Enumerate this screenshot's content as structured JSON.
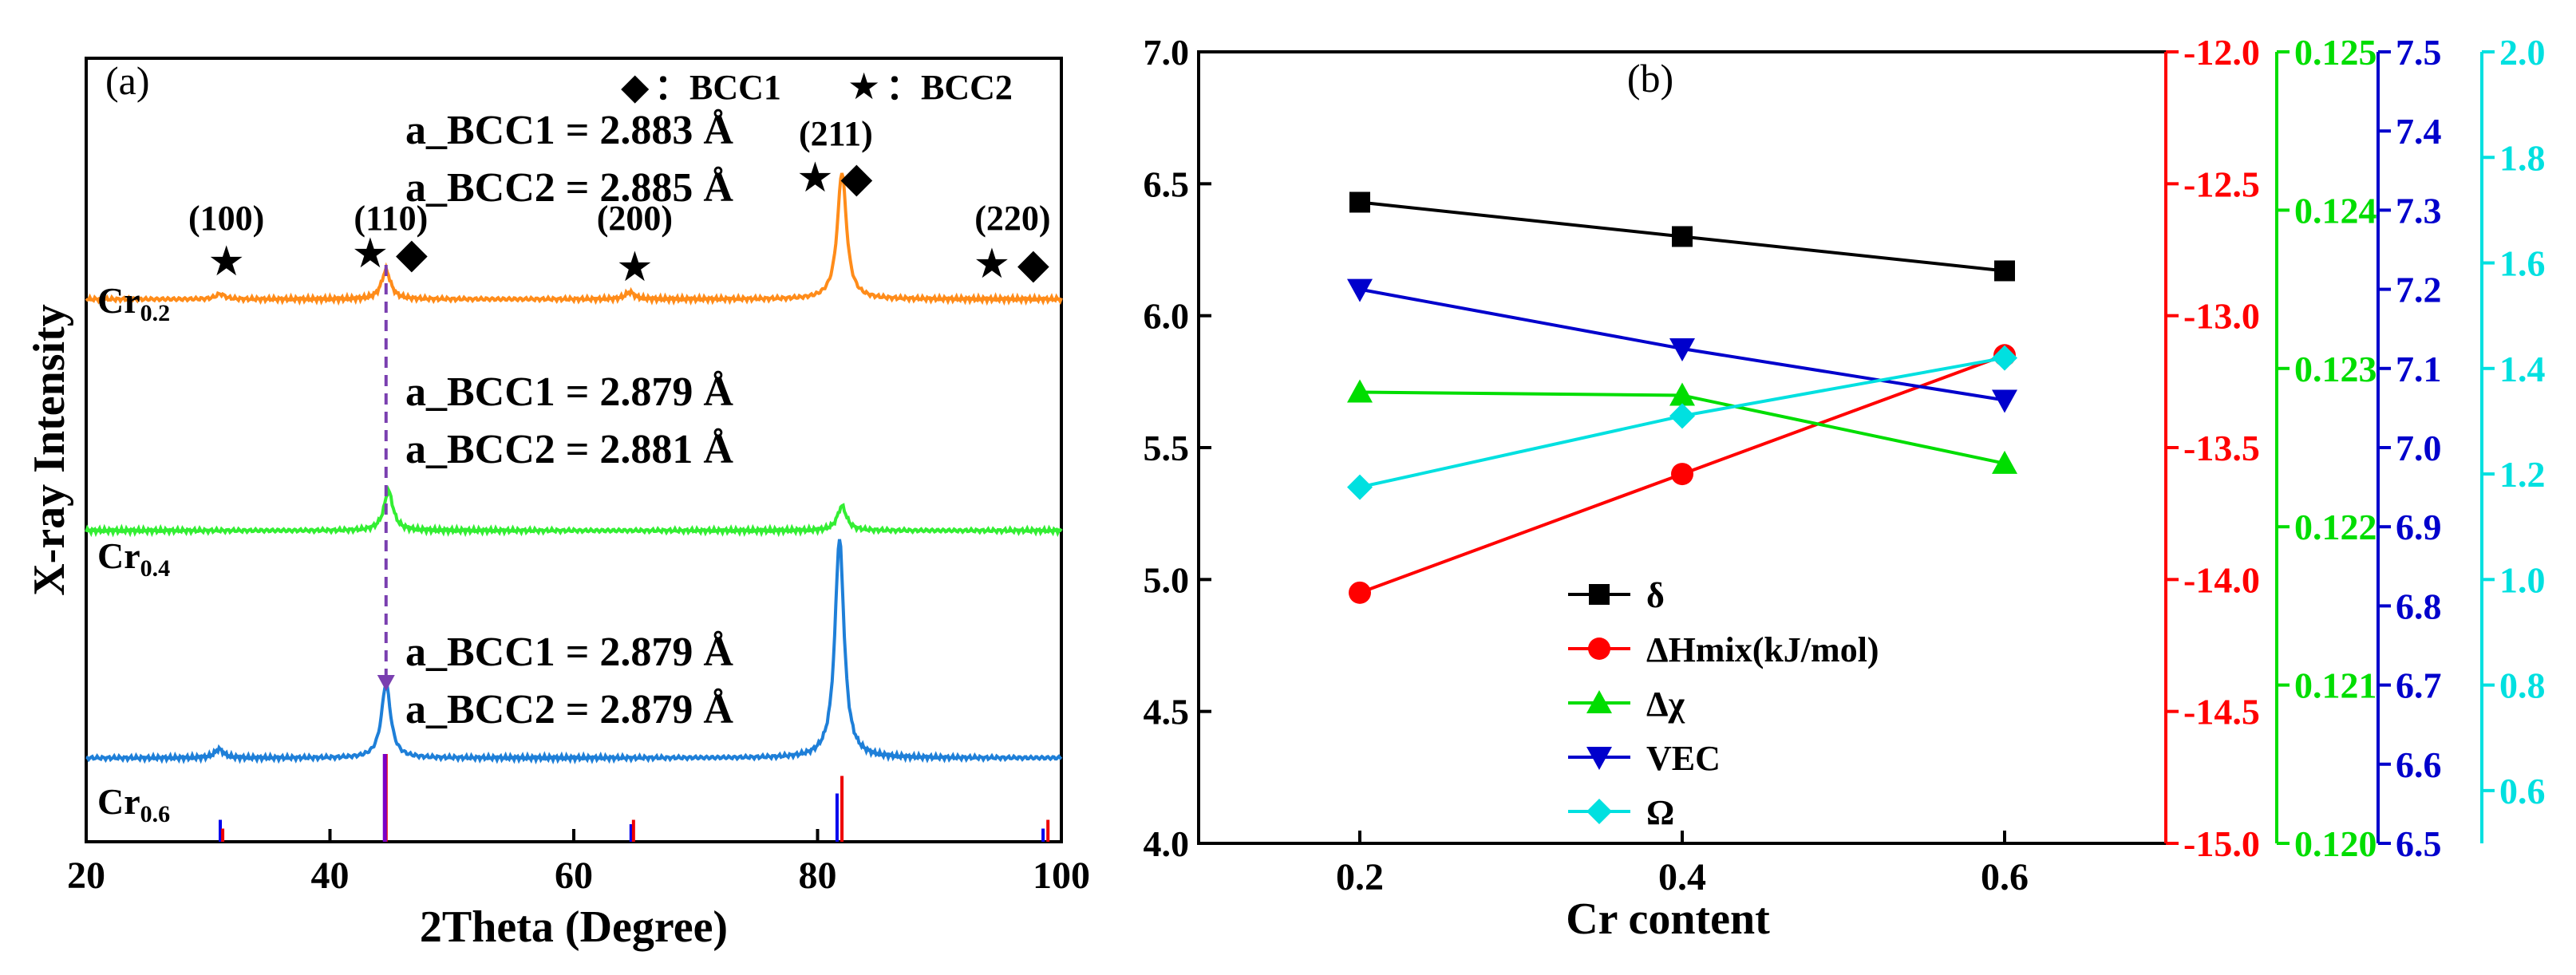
{
  "chart_data": [
    {
      "type": "line",
      "panel_label": "(a)",
      "xlabel": "2Theta (Degree)",
      "ylabel": "X-ray Intensity",
      "xlim": [
        20,
        100
      ],
      "xticks": [
        20,
        40,
        60,
        80,
        100
      ],
      "legend": {
        "bcc1_symbol": "◆",
        "bcc1_label": "：BCC1",
        "bcc2_symbol": "★",
        "bcc2_label": "：BCC2"
      },
      "series": [
        {
          "name": "Cr",
          "subscript": "0.2",
          "color": "#ff8c1a",
          "level": 2,
          "peaks": [
            {
              "x": 31.0,
              "h": 0.06
            },
            {
              "x": 44.6,
              "h": 0.33
            },
            {
              "x": 64.6,
              "h": 0.08
            },
            {
              "x": 82.0,
              "h": 1.45
            }
          ],
          "lattice": {
            "bcc1": "a_BCC1 = 2.883 Å",
            "bcc2": "a_BCC2 = 2.885 Å"
          }
        },
        {
          "name": "Cr",
          "subscript": "0.4",
          "color": "#33ee33",
          "level": 1,
          "peaks": [
            {
              "x": 44.8,
              "h": 0.45
            },
            {
              "x": 82.0,
              "h": 0.28
            }
          ],
          "lattice": {
            "bcc1": "a_BCC1 = 2.879 Å",
            "bcc2": "a_BCC2 = 2.881 Å"
          }
        },
        {
          "name": "Cr",
          "subscript": "0.6",
          "color": "#1e7fd8",
          "level": 0,
          "peaks": [
            {
              "x": 30.9,
              "h": 0.1
            },
            {
              "x": 44.6,
              "h": 0.85
            },
            {
              "x": 81.8,
              "h": 2.5
            }
          ],
          "lattice": {
            "bcc1": "a_BCC1 = 2.879 Å",
            "bcc2": "a_BCC2 = 2.879 Å"
          }
        }
      ],
      "peak_labels": [
        {
          "hkl": "(100)",
          "x": 31.5,
          "marks": [
            "★"
          ]
        },
        {
          "hkl": "(110)",
          "x": 45.0,
          "marks": [
            "★",
            "◆"
          ]
        },
        {
          "hkl": "(200)",
          "x": 65.0,
          "marks": [
            "★"
          ]
        },
        {
          "hkl": "(211)",
          "x": 81.5,
          "marks": [
            "★",
            "◆"
          ]
        },
        {
          "hkl": "(220)",
          "x": 96.0,
          "marks": [
            "★",
            "◆"
          ]
        }
      ],
      "reference_lines": [
        {
          "color": "#0000ee",
          "x": [
            31.0,
            44.5,
            64.7,
            81.6,
            98.5
          ],
          "heights": [
            0.25,
            1.0,
            0.2,
            0.55,
            0.15
          ]
        },
        {
          "color": "#ee0000",
          "x": [
            31.2,
            44.6,
            64.9,
            82.0,
            98.9
          ],
          "heights": [
            0.15,
            1.0,
            0.25,
            0.75,
            0.25
          ]
        },
        {
          "color": "#7a00c8",
          "x": [
            44.5
          ],
          "heights": [
            1.0
          ]
        }
      ],
      "dashed_marker_x": 44.6
    },
    {
      "type": "line",
      "panel_label": "(b)",
      "xlabel": "Cr content",
      "x": [
        0.2,
        0.4,
        0.6
      ],
      "xticks": [
        "0.2",
        "0.4",
        "0.6"
      ],
      "xlim": [
        0.1,
        0.7
      ],
      "axes": [
        {
          "id": "delta",
          "color": "#000000",
          "ylim": [
            4.0,
            7.0
          ],
          "ticks": [
            "4.0",
            "4.5",
            "5.0",
            "5.5",
            "6.0",
            "6.5",
            "7.0"
          ]
        },
        {
          "id": "hmix",
          "color": "#ff0000",
          "ylim": [
            -15.0,
            -12.0
          ],
          "ticks": [
            "-15.0",
            "-14.5",
            "-14.0",
            "-13.5",
            "-13.0",
            "-12.5",
            "-12.0"
          ]
        },
        {
          "id": "chi",
          "color": "#00dd00",
          "ylim": [
            0.12,
            0.125
          ],
          "ticks": [
            "0.120",
            "0.121",
            "0.122",
            "0.123",
            "0.124",
            "0.125"
          ]
        },
        {
          "id": "vec",
          "color": "#0000cc",
          "ylim": [
            6.5,
            7.5
          ],
          "ticks": [
            "6.5",
            "6.6",
            "6.7",
            "6.8",
            "6.9",
            "7.0",
            "7.1",
            "7.2",
            "7.3",
            "7.4",
            "7.5"
          ]
        },
        {
          "id": "omega",
          "color": "#00e0e0",
          "ylim": [
            0.5,
            2.0
          ],
          "ticks": [
            "0.6",
            "0.8",
            "1.0",
            "1.2",
            "1.4",
            "1.6",
            "1.8",
            "2.0"
          ]
        }
      ],
      "series": [
        {
          "name": "δ",
          "axis": "delta",
          "marker": "square",
          "color": "#000000",
          "values": [
            6.43,
            6.3,
            6.17
          ]
        },
        {
          "name": "ΔHmix(kJ/mol)",
          "axis": "hmix",
          "marker": "circle",
          "color": "#ff0000",
          "values": [
            -14.05,
            -13.6,
            -13.15
          ]
        },
        {
          "name": "Δχ",
          "axis": "chi",
          "marker": "triangle-up",
          "color": "#00dd00",
          "values": [
            0.12285,
            0.12283,
            0.1224
          ]
        },
        {
          "name": "VEC",
          "axis": "vec",
          "marker": "triangle-down",
          "color": "#0000cc",
          "values": [
            7.2,
            7.125,
            7.06
          ]
        },
        {
          "name": "Ω",
          "axis": "omega",
          "marker": "diamond",
          "color": "#00e0e0",
          "values": [
            1.175,
            1.31,
            1.42
          ]
        }
      ]
    }
  ]
}
